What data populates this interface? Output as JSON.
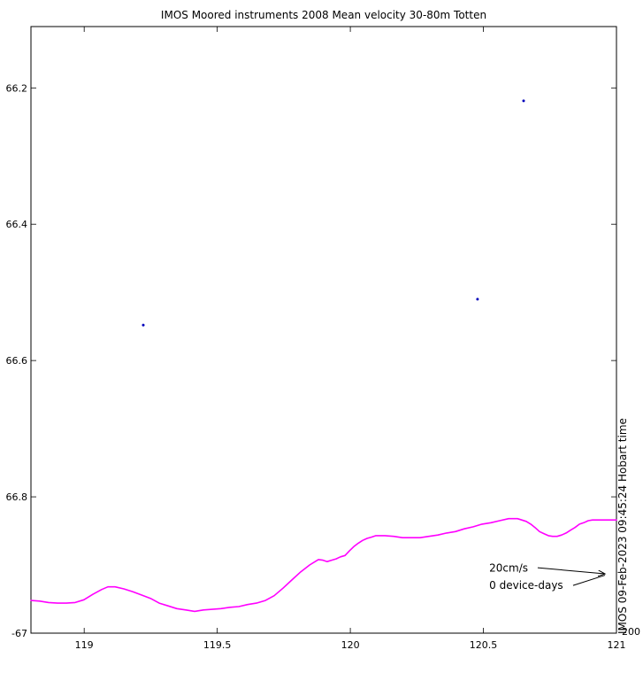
{
  "figure": {
    "side_note": "IMOS 09-Feb-2023 09:45:24 Hobart time",
    "corner_label": "200"
  },
  "chart_data": {
    "type": "scatter",
    "title": "IMOS Moored instruments 2008 Mean velocity 30-80m Totten",
    "xlabel": "",
    "ylabel": "",
    "xlim": [
      118.8,
      121.0
    ],
    "ylim": [
      -67.0,
      -66.11
    ],
    "grid": false,
    "x_ticks": [
      119,
      119.5,
      120,
      120.5,
      121
    ],
    "x_tick_labels": [
      "119",
      "119.5",
      "120",
      "120.5",
      "121"
    ],
    "y_ticks": [
      -66.2,
      -66.4,
      -66.6,
      -66.8,
      -67
    ],
    "y_tick_labels": [
      "66.2",
      "66.4",
      "66.6",
      "66.8",
      "-67"
    ],
    "colors": {
      "coastline": "#ff00ff",
      "mooring": "#0000bb",
      "axis": "#000000"
    },
    "series": [
      {
        "name": "coastline-200m-contour",
        "type": "line",
        "color": "#ff00ff",
        "points": [
          [
            118.8,
            -66.952
          ],
          [
            118.833,
            -66.953
          ],
          [
            118.866,
            -66.955
          ],
          [
            118.9,
            -66.956
          ],
          [
            118.933,
            -66.956
          ],
          [
            118.966,
            -66.955
          ],
          [
            118.999,
            -66.951
          ],
          [
            119.033,
            -66.943
          ],
          [
            119.066,
            -66.936
          ],
          [
            119.089,
            -66.932
          ],
          [
            119.116,
            -66.932
          ],
          [
            119.149,
            -66.935
          ],
          [
            119.182,
            -66.939
          ],
          [
            119.215,
            -66.944
          ],
          [
            119.249,
            -66.949
          ],
          [
            119.282,
            -66.956
          ],
          [
            119.315,
            -66.96
          ],
          [
            119.348,
            -66.964
          ],
          [
            119.382,
            -66.966
          ],
          [
            119.415,
            -66.968
          ],
          [
            119.448,
            -66.966
          ],
          [
            119.481,
            -66.965
          ],
          [
            119.514,
            -66.964
          ],
          [
            119.548,
            -66.962
          ],
          [
            119.581,
            -66.961
          ],
          [
            119.614,
            -66.958
          ],
          [
            119.647,
            -66.956
          ],
          [
            119.681,
            -66.952
          ],
          [
            119.714,
            -66.945
          ],
          [
            119.747,
            -66.934
          ],
          [
            119.78,
            -66.922
          ],
          [
            119.814,
            -66.91
          ],
          [
            119.847,
            -66.9
          ],
          [
            119.88,
            -66.892
          ],
          [
            119.897,
            -66.893
          ],
          [
            119.913,
            -66.895
          ],
          [
            119.93,
            -66.893
          ],
          [
            119.947,
            -66.891
          ],
          [
            119.963,
            -66.888
          ],
          [
            119.98,
            -66.886
          ],
          [
            119.997,
            -66.879
          ],
          [
            120.013,
            -66.873
          ],
          [
            120.03,
            -66.868
          ],
          [
            120.046,
            -66.864
          ],
          [
            120.063,
            -66.861
          ],
          [
            120.08,
            -66.859
          ],
          [
            120.096,
            -66.857
          ],
          [
            120.13,
            -66.857
          ],
          [
            120.163,
            -66.858
          ],
          [
            120.196,
            -66.86
          ],
          [
            120.229,
            -66.86
          ],
          [
            120.262,
            -66.86
          ],
          [
            120.295,
            -66.858
          ],
          [
            120.329,
            -66.856
          ],
          [
            120.362,
            -66.853
          ],
          [
            120.395,
            -66.851
          ],
          [
            120.428,
            -66.847
          ],
          [
            120.462,
            -66.844
          ],
          [
            120.495,
            -66.84
          ],
          [
            120.528,
            -66.838
          ],
          [
            120.561,
            -66.835
          ],
          [
            120.595,
            -66.832
          ],
          [
            120.628,
            -66.832
          ],
          [
            120.644,
            -66.834
          ],
          [
            120.661,
            -66.836
          ],
          [
            120.678,
            -66.84
          ],
          [
            120.694,
            -66.845
          ],
          [
            120.711,
            -66.851
          ],
          [
            120.727,
            -66.854
          ],
          [
            120.744,
            -66.857
          ],
          [
            120.76,
            -66.858
          ],
          [
            120.777,
            -66.858
          ],
          [
            120.794,
            -66.856
          ],
          [
            120.811,
            -66.853
          ],
          [
            120.827,
            -66.849
          ],
          [
            120.844,
            -66.845
          ],
          [
            120.861,
            -66.84
          ],
          [
            120.877,
            -66.838
          ],
          [
            120.894,
            -66.835
          ],
          [
            120.91,
            -66.834
          ],
          [
            120.944,
            -66.834
          ],
          [
            120.977,
            -66.834
          ],
          [
            121.0,
            -66.834
          ]
        ]
      },
      {
        "name": "mooring-locations",
        "type": "scatter",
        "color": "#0000bb",
        "points": [
          [
            119.222,
            -66.548
          ],
          [
            120.478,
            -66.51
          ],
          [
            120.651,
            -66.219
          ]
        ]
      }
    ],
    "legend": {
      "position": "bottom-right-inside",
      "scale_label": "20cm/s",
      "days_label": "0 device-days",
      "scale_label_pos": {
        "lon": 120.522,
        "lat": -66.91
      },
      "days_label_pos": {
        "lon": 120.522,
        "lat": -66.935
      },
      "arrow": {
        "x1": 120.704,
        "y1": -66.904,
        "x2": 120.957,
        "y2": -66.913
      },
      "arrow2": {
        "x1": 120.837,
        "y1": -66.93,
        "x2": 120.957,
        "y2": -66.915
      }
    }
  }
}
